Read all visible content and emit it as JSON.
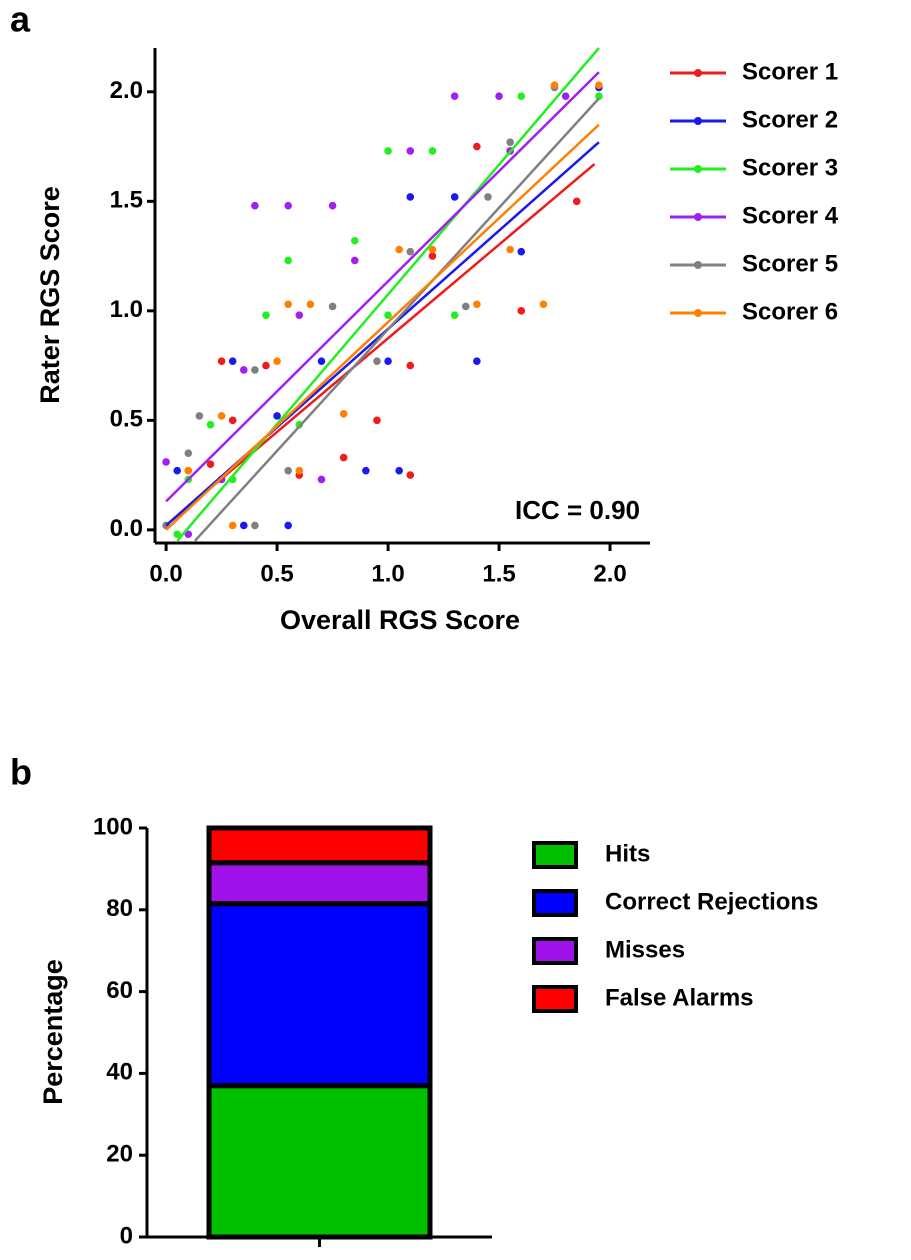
{
  "chart_data": [
    {
      "type": "scatter",
      "panel_label": "a",
      "xlabel": "Overall RGS Score",
      "ylabel": "Rater RGS Score",
      "annotation": "ICC = 0.90",
      "xlim": [
        -0.05,
        2.18
      ],
      "ylim": [
        -0.06,
        2.2
      ],
      "xticks": [
        {
          "value": 0,
          "label": "0.0"
        },
        0.5,
        {
          "value": 1,
          "label": "1.0"
        },
        1.5,
        {
          "value": 2,
          "label": "2.0"
        }
      ],
      "yticks": [
        {
          "value": 0,
          "label": "0.0"
        },
        0.5,
        {
          "value": 1,
          "label": "1.0"
        },
        1.5,
        {
          "value": 2,
          "label": "2.0"
        }
      ],
      "series": [
        {
          "name": "Scorer 1",
          "color": "#ee1c1c",
          "x": [
            0.1,
            0.2,
            0.3,
            0.45,
            0.6,
            0.8,
            0.95,
            1.1,
            1.2,
            1.4,
            1.6,
            1.85,
            1.1,
            0.25
          ],
          "values": [
            0.27,
            0.3,
            0.5,
            0.75,
            0.25,
            0.33,
            0.5,
            0.75,
            1.25,
            1.75,
            1.0,
            1.5,
            0.25,
            0.77
          ],
          "fit_x": [
            0,
            1.93
          ],
          "fit_values": [
            0.02,
            1.67
          ]
        },
        {
          "name": "Scorer 2",
          "color": "#1a1aee",
          "x": [
            0.05,
            0.3,
            0.5,
            0.55,
            0.7,
            0.9,
            1.05,
            1.1,
            1.3,
            1.4,
            1.6,
            1.95,
            0.35,
            1.0
          ],
          "values": [
            0.27,
            0.77,
            0.52,
            0.02,
            0.77,
            0.27,
            0.27,
            1.52,
            1.52,
            0.77,
            1.27,
            2.02,
            0.02,
            0.77
          ],
          "fit_x": [
            0,
            1.95
          ],
          "fit_values": [
            0.02,
            1.77
          ]
        },
        {
          "name": "Scorer 3",
          "color": "#22ee22",
          "x": [
            0.05,
            0.1,
            0.2,
            0.3,
            0.45,
            0.55,
            0.6,
            0.85,
            1.0,
            1.0,
            1.2,
            1.3,
            1.6,
            1.95
          ],
          "values": [
            -0.02,
            0.23,
            0.48,
            0.23,
            0.98,
            1.23,
            0.48,
            1.32,
            0.98,
            1.73,
            1.73,
            0.98,
            1.98,
            1.98
          ],
          "fit_x": [
            0.05,
            1.95
          ],
          "fit_values": [
            -0.05,
            2.2
          ]
        },
        {
          "name": "Scorer 4",
          "color": "#a020f0",
          "x": [
            0,
            0.1,
            0.25,
            0.35,
            0.4,
            0.55,
            0.6,
            0.7,
            0.75,
            0.85,
            1.1,
            1.3,
            1.5,
            1.8,
            1.55
          ],
          "values": [
            0.31,
            -0.02,
            0.23,
            0.73,
            1.48,
            1.48,
            0.98,
            0.23,
            1.48,
            1.23,
            1.73,
            1.98,
            1.98,
            1.98,
            1.73
          ],
          "fit_x": [
            0,
            1.95
          ],
          "fit_values": [
            0.13,
            2.09
          ]
        },
        {
          "name": "Scorer 5",
          "color": "#808080",
          "x": [
            0,
            0.1,
            0.15,
            0.4,
            0.55,
            0.75,
            0.95,
            1.1,
            1.35,
            1.45,
            1.55,
            1.75,
            0.4
          ],
          "values": [
            0.02,
            0.35,
            0.52,
            0.02,
            0.27,
            1.02,
            0.77,
            1.27,
            1.02,
            1.52,
            1.77,
            2.02,
            0.73
          ],
          "fit_x": [
            0.13,
            1.95
          ],
          "fit_values": [
            -0.05,
            1.97
          ]
        },
        {
          "name": "Scorer 6",
          "color": "#ff8000",
          "x": [
            0.1,
            0.25,
            0.3,
            0.5,
            0.55,
            0.6,
            0.8,
            1.05,
            1.2,
            1.4,
            1.55,
            1.7,
            1.75,
            1.95,
            0.65
          ],
          "values": [
            0.27,
            0.52,
            0.02,
            0.77,
            1.03,
            0.27,
            0.53,
            1.28,
            1.28,
            1.03,
            1.28,
            1.03,
            2.03,
            2.03,
            1.03
          ],
          "fit_x": [
            0,
            1.95
          ],
          "fit_values": [
            0,
            1.85
          ]
        }
      ]
    },
    {
      "type": "stacked-bar",
      "panel_label": "b",
      "ylabel": "Percentage",
      "categories": [
        null
      ],
      "ylim": [
        0,
        100
      ],
      "yticks": [
        0,
        20,
        40,
        60,
        80,
        100
      ],
      "series": [
        {
          "name": "Hits",
          "color": "#00c000",
          "values": [
            37
          ]
        },
        {
          "name": "Correct Rejections",
          "color": "#0000ff",
          "values": [
            44.5
          ]
        },
        {
          "name": "Misses",
          "color": "#a010e8",
          "values": [
            10
          ]
        },
        {
          "name": "False Alarms",
          "color": "#ff0000",
          "values": [
            8.5
          ]
        }
      ]
    }
  ]
}
